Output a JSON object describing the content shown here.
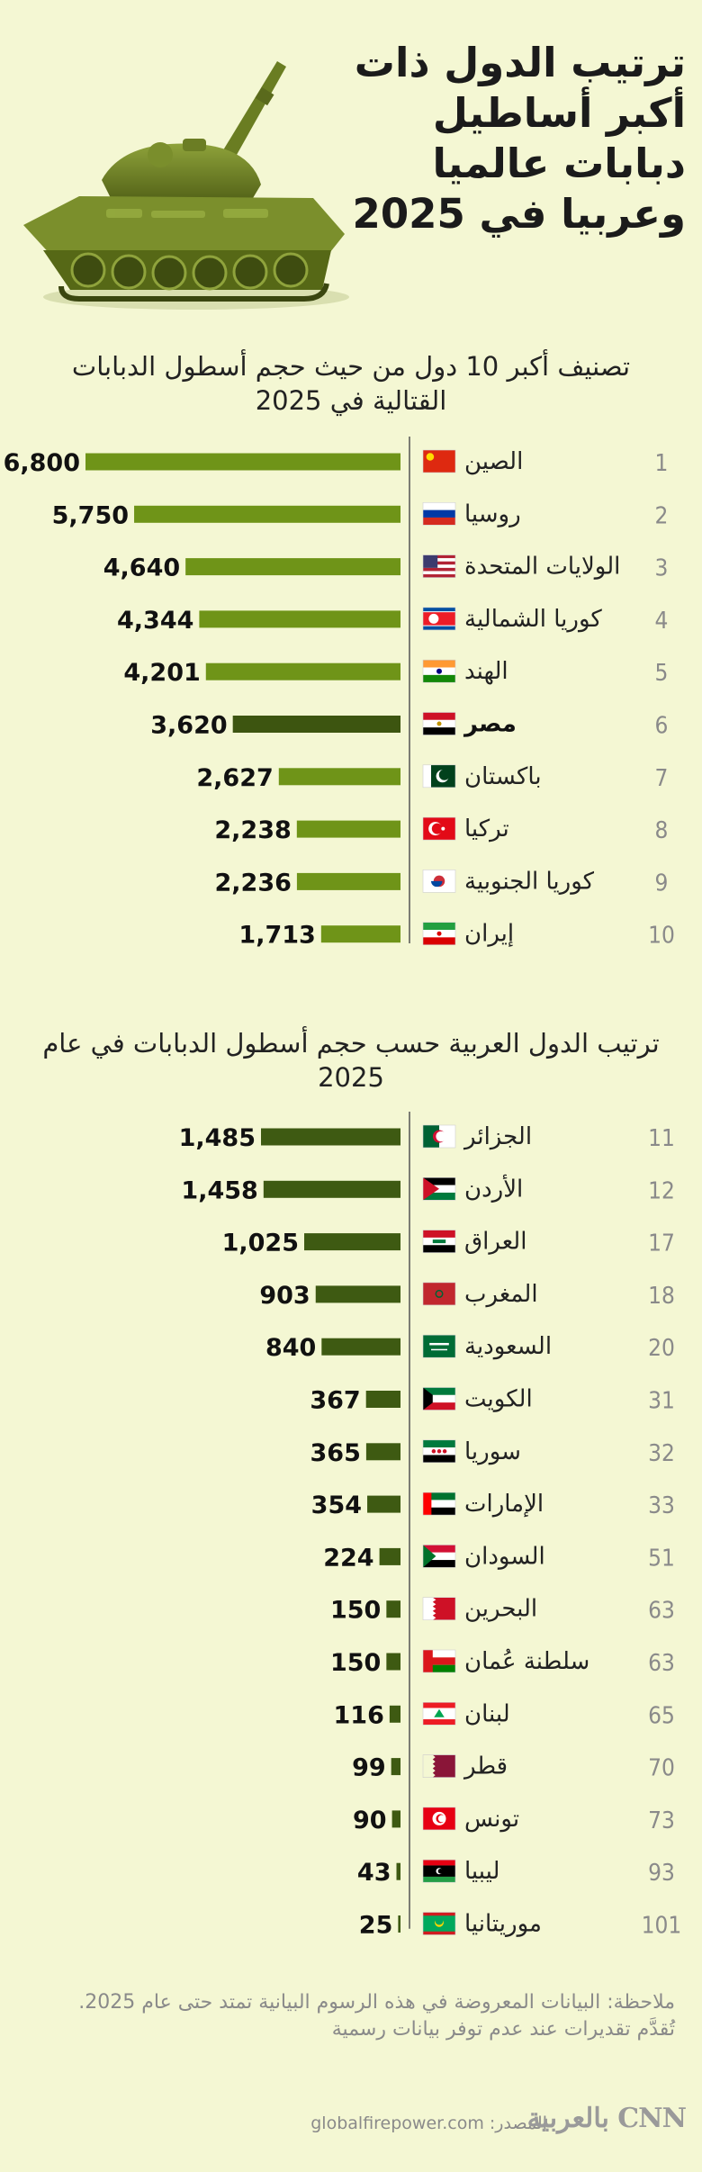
{
  "header": {
    "title": "ترتيب الدول ذات أكبر أساطيل دبابات عالميا وعربيا في 2025"
  },
  "icons": {
    "hero": "tank-illustration"
  },
  "colors": {
    "background": "#f4f7d3",
    "bar_top": "#6f9418",
    "bar_highlight": "#3d5510",
    "bar_arab": "#3e5a12",
    "axis": "#555555"
  },
  "chart_data": [
    {
      "type": "bar",
      "title": "تصنيف أكبر 10 دول من حيث حجم أسطول الدبابات القتالية في 2025",
      "orientation": "horizontal",
      "xlim": [
        0,
        6800
      ],
      "ranks": [
        "1",
        "2",
        "3",
        "4",
        "5",
        "6",
        "7",
        "8",
        "9",
        "10"
      ],
      "categories": [
        "الصين",
        "روسيا",
        "الولايات المتحدة",
        "كوريا الشمالية",
        "الهند",
        "مصر",
        "باكستان",
        "تركيا",
        "كوريا الجنوبية",
        "إيران"
      ],
      "flags": [
        "cn",
        "ru",
        "us",
        "kp",
        "in",
        "eg",
        "pk",
        "tr",
        "kr",
        "ir"
      ],
      "values": [
        6800,
        5750,
        4640,
        4344,
        4201,
        3620,
        2627,
        2238,
        2236,
        1713
      ],
      "labels": [
        "6,800",
        "5,750",
        "4,640",
        "4,344",
        "4,201",
        "3,620",
        "2,627",
        "2,238",
        "2,236",
        "1,713"
      ],
      "highlight": "مصر"
    },
    {
      "type": "bar",
      "title": "ترتيب الدول العربية حسب حجم أسطول الدبابات في عام 2025",
      "orientation": "horizontal",
      "xlim": [
        0,
        1485
      ],
      "ranks": [
        "11",
        "12",
        "17",
        "18",
        "20",
        "31",
        "32",
        "33",
        "51",
        "63",
        "63",
        "65",
        "70",
        "73",
        "93",
        "101"
      ],
      "categories": [
        "الجزائر",
        "الأردن",
        "العراق",
        "المغرب",
        "السعودية",
        "الكويت",
        "سوريا",
        "الإمارات",
        "السودان",
        "البحرين",
        "سلطنة عُمان",
        "لبنان",
        "قطر",
        "تونس",
        "ليبيا",
        "موريتانيا"
      ],
      "flags": [
        "dz",
        "jo",
        "iq",
        "ma",
        "sa",
        "kw",
        "sy",
        "ae",
        "sd",
        "bh",
        "om",
        "lb",
        "qa",
        "tn",
        "ly",
        "mr"
      ],
      "values": [
        1485,
        1458,
        1025,
        903,
        840,
        367,
        365,
        354,
        224,
        150,
        150,
        116,
        99,
        90,
        43,
        25
      ],
      "labels": [
        "1,485",
        "1,458",
        "1,025",
        "903",
        "840",
        "367",
        "365",
        "354",
        "224",
        "150",
        "150",
        "116",
        "99",
        "90",
        "43",
        "25"
      ]
    }
  ],
  "note": {
    "line1": "ملاحظة:  البيانات المعروضة في هذه الرسوم البيانية تمتد حتى عام 2025.",
    "line2": "تُقدَّم تقديرات عند عدم توفر بيانات رسمية"
  },
  "footer": {
    "source_label": "المصدر:",
    "source_value": "globalfirepower.com",
    "logo_text": "CNN بالعربية"
  }
}
